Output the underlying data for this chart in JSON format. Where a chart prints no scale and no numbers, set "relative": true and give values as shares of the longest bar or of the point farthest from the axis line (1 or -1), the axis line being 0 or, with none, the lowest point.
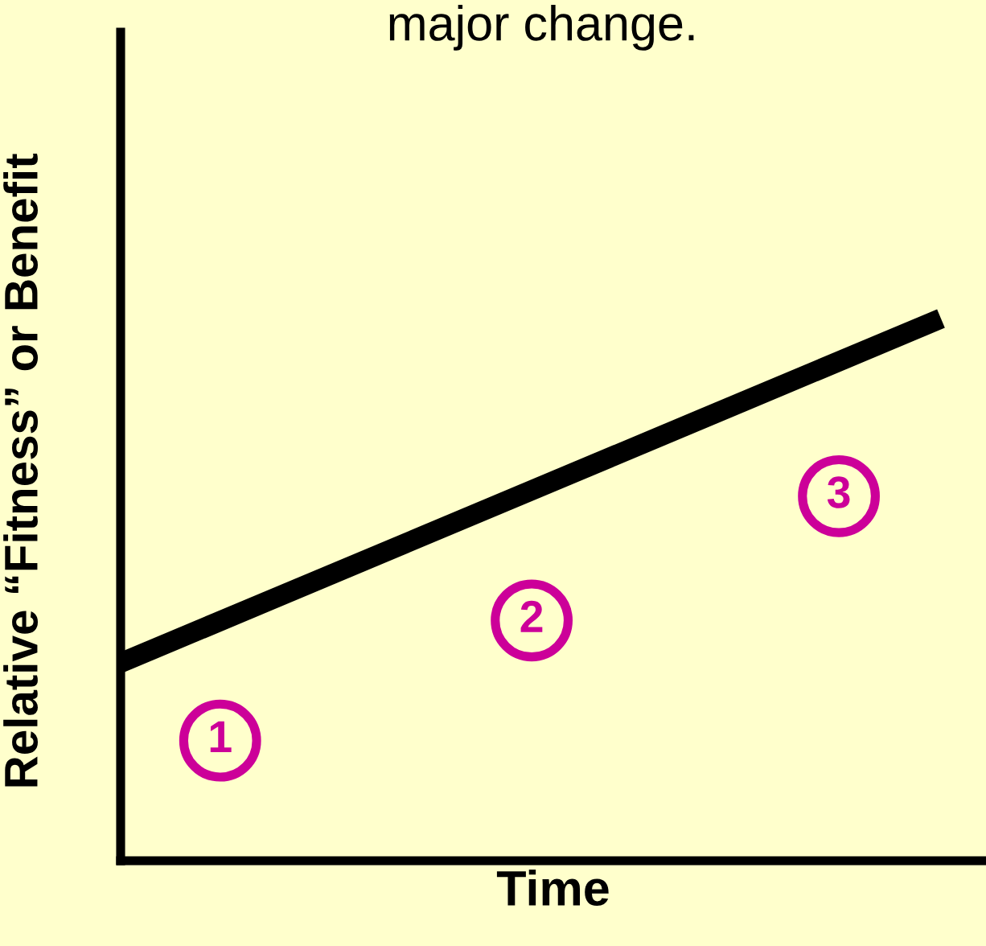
{
  "chart_data": {
    "type": "line",
    "title": "major change.",
    "xlabel": "Time",
    "ylabel": "Relative “Fitness” or Benefit",
    "categories": [
      null,
      null
    ],
    "relative": true,
    "series": [
      {
        "color": "#000000",
        "values": [
          0.365,
          1
        ]
      }
    ],
    "annotations": [
      "1",
      "2",
      "3"
    ],
    "ref_lines": [
      {
        "axis": "y",
        "value": 0,
        "color": "#000000"
      }
    ],
    "tick_labels": false,
    "legend": false,
    "marker": "none",
    "line_style": "solid"
  }
}
